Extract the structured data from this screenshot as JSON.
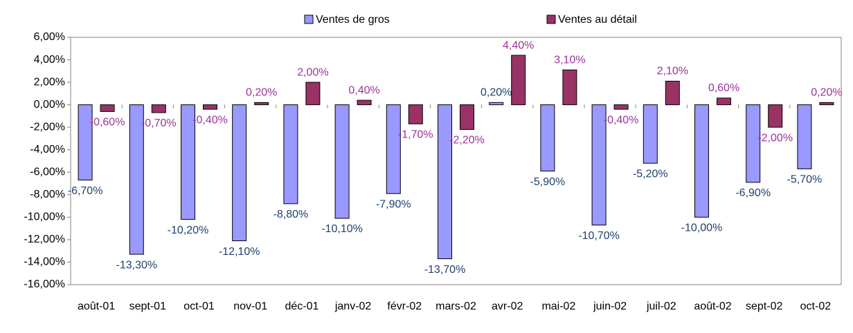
{
  "chart_data": {
    "type": "bar",
    "categories": [
      "août-01",
      "sept-01",
      "oct-01",
      "nov-01",
      "déc-01",
      "janv-02",
      "févr-02",
      "mars-02",
      "avr-02",
      "mai-02",
      "juin-02",
      "juil-02",
      "août-02",
      "sept-02",
      "oct-02"
    ],
    "series": [
      {
        "name": "Ventes de gros",
        "color": "#9999ff",
        "label_color": "#1f3f6e",
        "values": [
          -6.7,
          -13.3,
          -10.2,
          -12.1,
          -8.8,
          -10.1,
          -7.9,
          -13.7,
          0.2,
          -5.9,
          -10.7,
          -5.2,
          -10.0,
          -6.9,
          -5.7
        ],
        "value_labels": [
          "-6,70%",
          "-13,30%",
          "-10,20%",
          "-12,10%",
          "-8,80%",
          "-10,10%",
          "-7,90%",
          "-13,70%",
          "0,20%",
          "-5,90%",
          "-10,70%",
          "-5,20%",
          "-10,00%",
          "-6,90%",
          "-5,70%"
        ]
      },
      {
        "name": "Ventes au détail",
        "color": "#993366",
        "label_color": "#993399",
        "values": [
          -0.6,
          -0.7,
          -0.4,
          0.2,
          2.0,
          0.4,
          -1.7,
          -2.2,
          4.4,
          3.1,
          -0.4,
          2.1,
          0.6,
          -2.0,
          0.2
        ],
        "value_labels": [
          "-0,60%",
          "-0,70%",
          "-0,40%",
          "0,20%",
          "2,00%",
          "0,40%",
          "-1,70%",
          "-2,20%",
          "4,40%",
          "3,10%",
          "-0,40%",
          "2,10%",
          "0,60%",
          "-2,00%",
          "0,20%"
        ]
      }
    ],
    "ylim": [
      -16,
      6
    ],
    "yticks": [
      {
        "value": 6,
        "label": "6,00%"
      },
      {
        "value": 4,
        "label": "4,00%"
      },
      {
        "value": 2,
        "label": "2,00%"
      },
      {
        "value": 0,
        "label": "0,00%"
      },
      {
        "value": -2,
        "label": "-2,00%"
      },
      {
        "value": -4,
        "label": "-4,00%"
      },
      {
        "value": -6,
        "label": "-6,00%"
      },
      {
        "value": -8,
        "label": "-8,00%"
      },
      {
        "value": -10,
        "label": "-10,00%"
      },
      {
        "value": -12,
        "label": "-12,00%"
      },
      {
        "value": -14,
        "label": "-14,00%"
      },
      {
        "value": -16,
        "label": "-16,00%"
      }
    ],
    "legend": "top"
  }
}
